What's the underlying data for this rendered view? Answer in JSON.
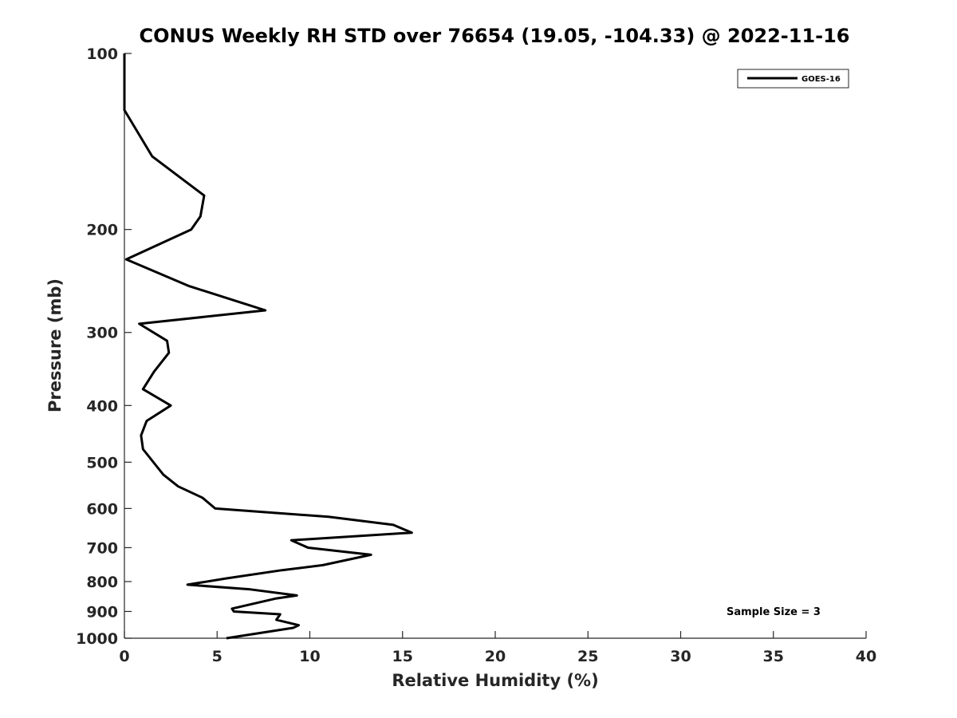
{
  "chart_data": {
    "type": "line",
    "title": "CONUS Weekly RH STD over 76654 (19.05, -104.33) @ 2022-11-16",
    "xlabel": "Relative Humidity (%)",
    "ylabel": "Pressure (mb)",
    "xlim": [
      0,
      40
    ],
    "ylim": [
      100,
      1000
    ],
    "y_scale": "log",
    "y_reversed": true,
    "xticks": [
      0,
      5,
      10,
      15,
      20,
      25,
      30,
      35,
      40
    ],
    "xtick_labels": [
      "0",
      "5",
      "10",
      "15",
      "20",
      "25",
      "30",
      "35",
      "40"
    ],
    "yticks": [
      100,
      200,
      300,
      400,
      500,
      600,
      700,
      800,
      900,
      1000
    ],
    "ytick_labels": [
      "100",
      "200",
      "300",
      "400",
      "500",
      "600",
      "700",
      "800",
      "900",
      "1000"
    ],
    "grid": false,
    "legend": {
      "position": "top-right",
      "entries": [
        "GOES-16"
      ]
    },
    "annotation": "Sample Size = 3",
    "series": [
      {
        "name": "GOES-16",
        "color": "#000000",
        "points": [
          [
            0,
            100
          ],
          [
            0,
            125
          ],
          [
            1.5,
            150
          ],
          [
            4.3,
            175
          ],
          [
            4.1,
            190
          ],
          [
            3.6,
            200
          ],
          [
            0.1,
            225
          ],
          [
            3.5,
            250
          ],
          [
            7.6,
            275
          ],
          [
            0.8,
            290
          ],
          [
            2.3,
            310
          ],
          [
            2.4,
            325
          ],
          [
            1.6,
            350
          ],
          [
            1.0,
            375
          ],
          [
            2.5,
            400
          ],
          [
            1.2,
            425
          ],
          [
            0.9,
            450
          ],
          [
            1.0,
            475
          ],
          [
            2.1,
            525
          ],
          [
            2.9,
            550
          ],
          [
            4.2,
            575
          ],
          [
            4.9,
            600
          ],
          [
            11.0,
            620
          ],
          [
            14.5,
            640
          ],
          [
            15.5,
            660
          ],
          [
            9.0,
            680
          ],
          [
            9.9,
            700
          ],
          [
            13.3,
            720
          ],
          [
            10.7,
            750
          ],
          [
            8.5,
            765
          ],
          [
            5.5,
            790
          ],
          [
            3.4,
            810
          ],
          [
            6.8,
            825
          ],
          [
            9.3,
            845
          ],
          [
            8.2,
            855
          ],
          [
            5.8,
            890
          ],
          [
            5.9,
            900
          ],
          [
            8.4,
            910
          ],
          [
            8.2,
            930
          ],
          [
            9.4,
            950
          ],
          [
            9.1,
            960
          ],
          [
            5.5,
            1000
          ]
        ]
      }
    ]
  }
}
